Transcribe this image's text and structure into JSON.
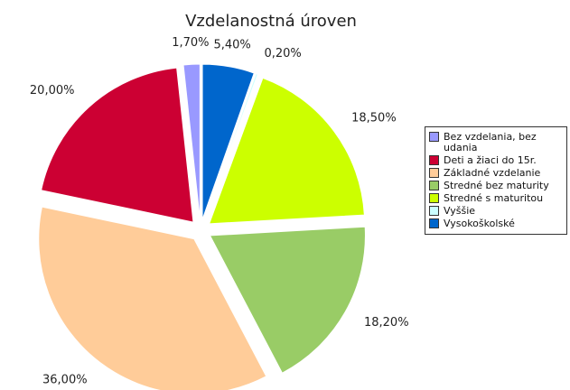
{
  "chart_data": {
    "type": "pie",
    "title": "Vzdelanostná úroven",
    "categories": [
      "Bez vzdelania, bez udania",
      "Deti a žiaci do 15r.",
      "Základné vzdelanie",
      "Stredné bez maturity",
      "Stredné s maturitou",
      "Vyššie",
      "Vysokoškolské"
    ],
    "values": [
      1.7,
      20.0,
      36.0,
      18.2,
      18.5,
      0.2,
      5.4
    ],
    "value_labels": [
      "1,70%",
      "20,00%",
      "36,00%",
      "18,20%",
      "18,50%",
      "0,20%",
      "5,40%"
    ],
    "colors": [
      "#9999ff",
      "#cc0033",
      "#ffcc99",
      "#99cc66",
      "#ccff00",
      "#ccffff",
      "#0066cc"
    ],
    "legend": "right"
  }
}
